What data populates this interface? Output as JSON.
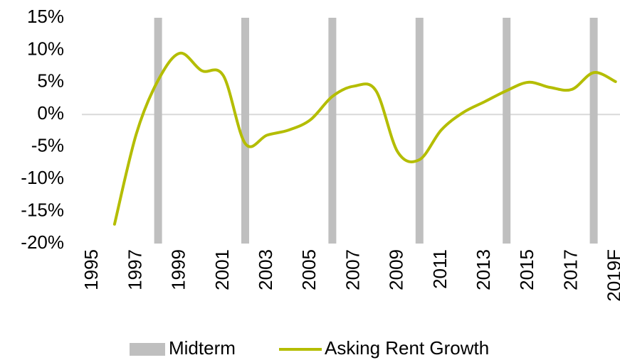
{
  "chart_data": {
    "type": "combo",
    "categories": [
      "1995",
      null,
      "1997",
      null,
      "1999",
      null,
      "2001",
      null,
      "2003",
      null,
      "2005",
      null,
      "2007",
      null,
      "2009",
      null,
      "2011",
      null,
      "2013",
      null,
      "2015",
      null,
      "2017",
      null,
      "2019F"
    ],
    "series": [
      {
        "name": "Midterm",
        "type": "bar",
        "color": "#bfbfbf",
        "values": [
          null,
          null,
          null,
          15,
          null,
          null,
          null,
          15,
          null,
          null,
          null,
          15,
          null,
          null,
          null,
          15,
          null,
          null,
          null,
          15,
          null,
          null,
          null,
          15,
          null
        ]
      },
      {
        "name": "Asking Rent Growth",
        "type": "line",
        "color": "#b4bd00",
        "values": [
          null,
          -17,
          -3,
          5.3,
          9.5,
          6.8,
          6,
          -4.5,
          -3.2,
          -2.4,
          -0.8,
          2.8,
          4.4,
          3.7,
          -5.8,
          -7,
          -2.4,
          0.3,
          2,
          3.7,
          5,
          4.2,
          3.9,
          6.5,
          5.1
        ]
      }
    ],
    "ylim": [
      -20,
      15
    ],
    "yticks": [
      {
        "value": -20,
        "label": "-20%"
      },
      {
        "value": -15,
        "label": "-15%"
      },
      {
        "value": -10,
        "label": "-10%"
      },
      {
        "value": -5,
        "label": "-5%"
      },
      {
        "value": 0,
        "label": "0%"
      },
      {
        "value": 5,
        "label": "5%"
      },
      {
        "value": 10,
        "label": "10%"
      },
      {
        "value": 15,
        "label": "15%"
      }
    ],
    "zero_line": true,
    "legend": "bottom"
  }
}
